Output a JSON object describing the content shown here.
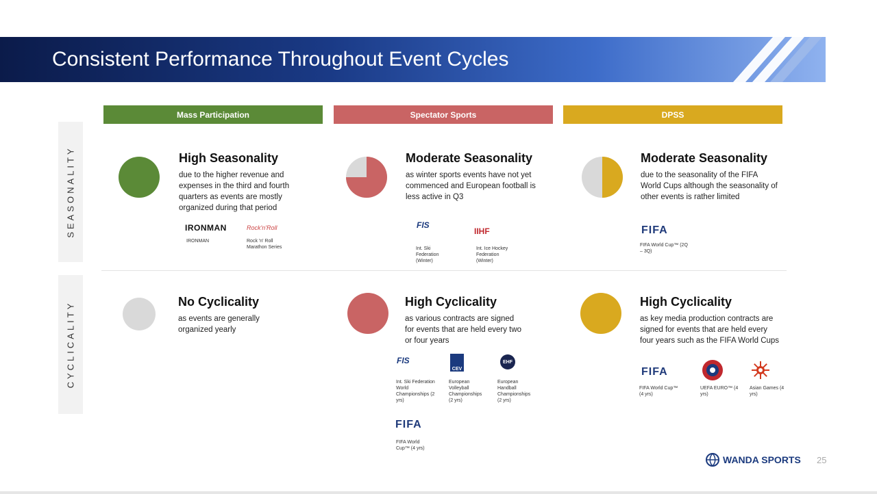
{
  "slide": {
    "title": "Consistent Performance Throughout Event Cycles",
    "page_number": "25",
    "brand": "WANDA SPORTS"
  },
  "colors": {
    "mass_participation": "#5b8a37",
    "spectator_sports": "#c96464",
    "dpss": "#d9a91f",
    "neutral": "#d9d9d9"
  },
  "rows": {
    "seasonality_label": "SEASONALITY",
    "cyclicality_label": "CYCLICALITY"
  },
  "columns": [
    {
      "header": "Mass Participation"
    },
    {
      "header": "Spectator Sports"
    },
    {
      "header": "DPSS"
    }
  ],
  "seasonality": [
    {
      "title": "High Seasonality",
      "desc": "due to the higher revenue and expenses in the third and fourth quarters as events are mostly organized during that period",
      "indicator_fill": 1.0,
      "logos": [
        {
          "icon": "ironman-logo",
          "text": "IRONMAN",
          "caption": "IRONMAN"
        },
        {
          "icon": "rock-n-roll-logo",
          "text": "Rock'n'Roll",
          "caption": "Rock 'n' Roll Marathon Series"
        }
      ]
    },
    {
      "title": "Moderate Seasonality",
      "desc": "as winter sports events have not yet commenced and European football is less active in Q3",
      "indicator_fill": 0.75,
      "logos": [
        {
          "icon": "fis-logo",
          "text": "FIS",
          "caption": "Int. Ski Federation (Winter)"
        },
        {
          "icon": "iihf-logo",
          "text": "IIHF",
          "caption": "Int. Ice Hockey Federation (Winter)"
        }
      ]
    },
    {
      "title": "Moderate Seasonality",
      "desc": "due to the seasonality of the FIFA World Cups although the seasonality of other events is rather limited",
      "indicator_fill": 0.5,
      "logos": [
        {
          "icon": "fifa-logo",
          "text": "FIFA",
          "caption": "FIFA World Cup™ (2Q – 3Q)"
        }
      ]
    }
  ],
  "cyclicality": [
    {
      "title": "No Cyclicality",
      "desc": "as events are generally organized yearly",
      "indicator_fill": 0.0,
      "logos": []
    },
    {
      "title": "High Cyclicality",
      "desc": "as various contracts are signed for events that are held every two or four years",
      "indicator_fill": 1.0,
      "logos": [
        {
          "icon": "fis-logo",
          "text": "FIS",
          "caption": "Int. Ski Federation World Championships (2 yrs)"
        },
        {
          "icon": "cev-logo",
          "text": "CEV",
          "caption": "European Volleyball Championships (2 yrs)"
        },
        {
          "icon": "ehf-logo",
          "text": "EHF",
          "caption": "European Handball Championships (2 yrs)"
        },
        {
          "icon": "fifa-logo",
          "text": "FIFA",
          "caption": "FIFA World Cup™ (4 yrs)"
        }
      ]
    },
    {
      "title": "High Cyclicality",
      "desc": "as key media production contracts are signed for events that are held every four years such as the FIFA World Cups",
      "indicator_fill": 1.0,
      "logos": [
        {
          "icon": "fifa-logo",
          "text": "FIFA",
          "caption": "FIFA World Cup™ (4 yrs)"
        },
        {
          "icon": "uefa-logo",
          "text": "",
          "caption": "UEFA EURO™ (4 yrs)"
        },
        {
          "icon": "asian-games-logo",
          "text": "",
          "caption": "Asian Games (4 yrs)"
        }
      ]
    }
  ]
}
